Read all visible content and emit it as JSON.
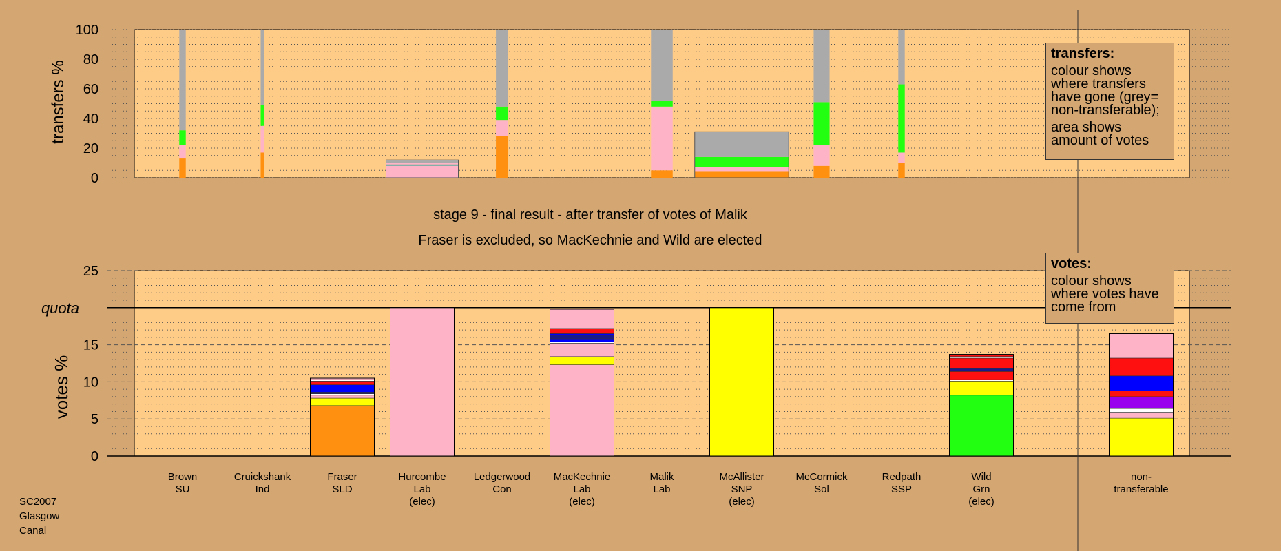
{
  "colors": {
    "background": "#d4a672",
    "plot_area": "#ffcc88",
    "orange": "#ff9010",
    "pink": "#ffb3c6",
    "green": "#22ff11",
    "grey": "#aaaaaa",
    "yellow": "#ffff00",
    "red": "#ff1010",
    "blue": "#0000ff",
    "navy": "#1a1a8a",
    "purple": "#9900ee",
    "white": "#ffffff",
    "teal": "#66aaaa"
  },
  "stage": {
    "line1": "stage 9 - final result - after transfer of votes of Malik",
    "line2": "Fraser is excluded, so MacKechnie and Wild are elected"
  },
  "legend_transfers": {
    "title": "transfers:",
    "line1": "colour shows where transfers have gone (grey= non-transferable);",
    "line2": "area shows amount of votes"
  },
  "legend_votes": {
    "title": "votes:",
    "line1": "colour shows where votes have come from"
  },
  "footer": {
    "line1": "SC2007",
    "line2": "Glasgow",
    "line3": "Canal"
  },
  "chart_data": [
    {
      "type": "bar",
      "name": "transfers",
      "ylabel": "transfers %",
      "ylim": [
        0,
        100
      ],
      "yticks": [
        0,
        20,
        40,
        60,
        80,
        100
      ],
      "grid": "dotted every 5",
      "bars": [
        {
          "candidate": "Brown",
          "width_weight": 0.09,
          "segments": [
            [
              "orange",
              13
            ],
            [
              "pink",
              9
            ],
            [
              "green",
              10
            ],
            [
              "grey",
              68
            ]
          ]
        },
        {
          "candidate": "Cruickshank",
          "width_weight": 0.04,
          "segments": [
            [
              "orange",
              17
            ],
            [
              "pink",
              18
            ],
            [
              "green",
              14
            ],
            [
              "grey",
              51
            ]
          ]
        },
        {
          "candidate": "Hurcombe",
          "width_weight": 1.0,
          "segments": [
            [
              "pink",
              8
            ],
            [
              "teal",
              1
            ],
            [
              "pink",
              1
            ],
            [
              "grey",
              2
            ]
          ]
        },
        {
          "candidate": "Ledgerwood",
          "width_weight": 0.17,
          "segments": [
            [
              "orange",
              28
            ],
            [
              "pink",
              11
            ],
            [
              "green",
              9
            ],
            [
              "grey",
              52
            ]
          ]
        },
        {
          "candidate": "Malik",
          "width_weight": 0.3,
          "segments": [
            [
              "orange",
              5
            ],
            [
              "pink",
              43
            ],
            [
              "green",
              4
            ],
            [
              "grey",
              48
            ]
          ]
        },
        {
          "candidate": "McAllister",
          "width_weight": 1.3,
          "segments": [
            [
              "orange",
              4
            ],
            [
              "pink",
              3
            ],
            [
              "green",
              7
            ],
            [
              "grey",
              17
            ]
          ]
        },
        {
          "candidate": "McCormick",
          "width_weight": 0.22,
          "segments": [
            [
              "orange",
              8
            ],
            [
              "pink",
              14
            ],
            [
              "green",
              29
            ],
            [
              "grey",
              49
            ]
          ]
        },
        {
          "candidate": "Redpath",
          "width_weight": 0.09,
          "segments": [
            [
              "orange",
              10
            ],
            [
              "pink",
              7
            ],
            [
              "green",
              46
            ],
            [
              "grey",
              37
            ]
          ]
        }
      ]
    },
    {
      "type": "bar",
      "name": "votes",
      "ylabel": "votes %",
      "ylim": [
        0,
        25
      ],
      "yticks": [
        0,
        5,
        10,
        15,
        20,
        25
      ],
      "quota": 20,
      "quota_label": "quota",
      "grid": "dotted every 1, dashed every 5",
      "categories": [
        {
          "name": "Brown",
          "party": "SU",
          "status": ""
        },
        {
          "name": "Cruickshank",
          "party": "Ind",
          "status": ""
        },
        {
          "name": "Fraser",
          "party": "SLD",
          "status": ""
        },
        {
          "name": "Hurcombe",
          "party": "Lab",
          "status": "(elec)"
        },
        {
          "name": "Ledgerwood",
          "party": "Con",
          "status": ""
        },
        {
          "name": "MacKechnie",
          "party": "Lab",
          "status": "(elec)"
        },
        {
          "name": "Malik",
          "party": "Lab",
          "status": ""
        },
        {
          "name": "McAllister",
          "party": "SNP",
          "status": "(elec)"
        },
        {
          "name": "McCormick",
          "party": "Sol",
          "status": ""
        },
        {
          "name": "Redpath",
          "party": "SSP",
          "status": ""
        },
        {
          "name": "Wild",
          "party": "Grn",
          "status": "(elec)"
        },
        {
          "name": "non-",
          "party": "transferable",
          "status": ""
        }
      ],
      "slots": [
        0,
        1,
        2,
        3,
        4,
        5,
        6,
        7,
        8,
        9,
        10,
        12
      ],
      "stacks": [
        [],
        [],
        [
          [
            "orange",
            6.8
          ],
          [
            "yellow",
            1.0
          ],
          [
            "pink",
            0.4
          ],
          [
            "white",
            0.2
          ],
          [
            "navy",
            0.2
          ],
          [
            "blue",
            1.0
          ],
          [
            "red",
            0.5
          ],
          [
            "white",
            0.2
          ],
          [
            "pink",
            0.2
          ]
        ],
        [
          [
            "pink",
            20.0
          ]
        ],
        [],
        [
          [
            "pink",
            12.3
          ],
          [
            "yellow",
            1.1
          ],
          [
            "pink",
            1.8
          ],
          [
            "white",
            0.2
          ],
          [
            "blue",
            0.4
          ],
          [
            "navy",
            0.4
          ],
          [
            "blue",
            0.3
          ],
          [
            "red",
            0.7
          ],
          [
            "pink",
            2.6
          ]
        ],
        [],
        [
          [
            "yellow",
            20.0
          ]
        ],
        [],
        [],
        [
          [
            "green",
            8.2
          ],
          [
            "yellow",
            1.9
          ],
          [
            "white",
            0.2
          ],
          [
            "red",
            1.1
          ],
          [
            "navy",
            0.4
          ],
          [
            "red",
            1.4
          ],
          [
            "white",
            0.2
          ],
          [
            "red",
            0.3
          ]
        ],
        [
          [
            "yellow",
            5.1
          ],
          [
            "pink",
            0.8
          ],
          [
            "white",
            0.5
          ],
          [
            "purple",
            1.6
          ],
          [
            "red",
            0.8
          ],
          [
            "blue",
            2.0
          ],
          [
            "red",
            2.4
          ],
          [
            "pink",
            3.3
          ]
        ]
      ]
    }
  ]
}
